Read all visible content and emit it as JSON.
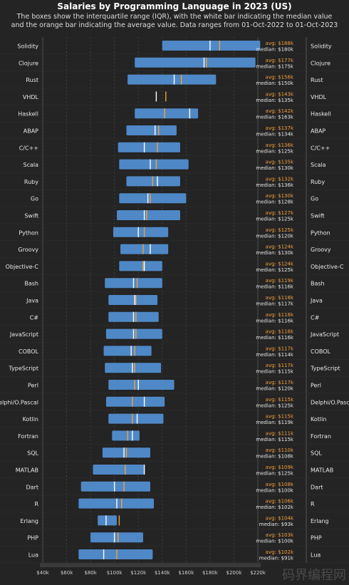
{
  "chart_data": {
    "type": "box",
    "title": "Salaries by Programming Language in 2023 (US)",
    "subtitle_lines": [
      "The boxes show the interquartile range (IQR), with the white bar indicating the median value",
      "and the orange bar indicating the average value. Data ranges from 01-Oct-2022 to 01-Oct-2023"
    ],
    "x_ticks": [
      "$40k",
      "$60k",
      "$80k",
      "$100k",
      "$120k",
      "$140k",
      "$160k",
      "$180k",
      "$200k",
      "$220k"
    ],
    "xlim": [
      40,
      220
    ],
    "unit": "k USD",
    "grid": true,
    "avg_label_prefix": "avg: ",
    "median_label_prefix": "median: ",
    "series": [
      {
        "name": "Solidity",
        "q1": 140,
        "q3": 222,
        "median": 180,
        "avg": 188,
        "avg_label": "$188k",
        "median_label": "$180k"
      },
      {
        "name": "Clojure",
        "q1": 117,
        "q3": 218,
        "median": 175,
        "avg": 177,
        "avg_label": "$177k",
        "median_label": "$175k"
      },
      {
        "name": "Rust",
        "q1": 111,
        "q3": 185,
        "median": 150,
        "avg": 156,
        "avg_label": "$156k",
        "median_label": "$150k"
      },
      {
        "name": "VHDL",
        "q1": null,
        "q3": null,
        "median": 135,
        "avg": 143,
        "avg_label": "$143k",
        "median_label": "$135k"
      },
      {
        "name": "Haskell",
        "q1": 117,
        "q3": 170,
        "median": 163,
        "avg": 142,
        "avg_label": "$142k",
        "median_label": "$163k"
      },
      {
        "name": "ABAP",
        "q1": 110,
        "q3": 152,
        "median": 134,
        "avg": 137,
        "avg_label": "$137k",
        "median_label": "$134k"
      },
      {
        "name": "C/C++",
        "q1": 103,
        "q3": 155,
        "median": 125,
        "avg": 136,
        "avg_label": "$136k",
        "median_label": "$125k"
      },
      {
        "name": "Scala",
        "q1": 104,
        "q3": 162,
        "median": 130,
        "avg": 135,
        "avg_label": "$135k",
        "median_label": "$130k"
      },
      {
        "name": "Ruby",
        "q1": 110,
        "q3": 155,
        "median": 136,
        "avg": 132,
        "avg_label": "$132k",
        "median_label": "$136k"
      },
      {
        "name": "Go",
        "q1": 104,
        "q3": 160,
        "median": 128,
        "avg": 130,
        "avg_label": "$130k",
        "median_label": "$128k"
      },
      {
        "name": "Swift",
        "q1": 102,
        "q3": 155,
        "median": 125,
        "avg": 127,
        "avg_label": "$127k",
        "median_label": "$125k"
      },
      {
        "name": "Python",
        "q1": 99,
        "q3": 145,
        "median": 120,
        "avg": 125,
        "avg_label": "$125k",
        "median_label": "$120k"
      },
      {
        "name": "Groovy",
        "q1": 105,
        "q3": 145,
        "median": 130,
        "avg": 124,
        "avg_label": "$124k",
        "median_label": "$130k"
      },
      {
        "name": "Objective-C",
        "q1": 104,
        "q3": 140,
        "median": 125,
        "avg": 124,
        "avg_label": "$124k",
        "median_label": "$125k"
      },
      {
        "name": "Bash",
        "q1": 92,
        "q3": 140,
        "median": 116,
        "avg": 119,
        "avg_label": "$119k",
        "median_label": "$116k"
      },
      {
        "name": "Java",
        "q1": 95,
        "q3": 136,
        "median": 117,
        "avg": 118,
        "avg_label": "$118k",
        "median_label": "$117k"
      },
      {
        "name": "C#",
        "q1": 95,
        "q3": 137,
        "median": 116,
        "avg": 118,
        "avg_label": "$118k",
        "median_label": "$116k"
      },
      {
        "name": "JavaScript",
        "q1": 93,
        "q3": 140,
        "median": 116,
        "avg": 118,
        "avg_label": "$118k",
        "median_label": "$116k"
      },
      {
        "name": "COBOL",
        "q1": 91,
        "q3": 131,
        "median": 114,
        "avg": 117,
        "avg_label": "$117k",
        "median_label": "$114k"
      },
      {
        "name": "TypeScript",
        "q1": 92,
        "q3": 139,
        "median": 115,
        "avg": 117,
        "avg_label": "$117k",
        "median_label": "$115k"
      },
      {
        "name": "Perl",
        "q1": 95,
        "q3": 150,
        "median": 120,
        "avg": 117,
        "avg_label": "$117k",
        "median_label": "$120k"
      },
      {
        "name": "Delphi/O.Pascal",
        "q1": 93,
        "q3": 142,
        "median": 125,
        "avg": 115,
        "avg_label": "$115k",
        "median_label": "$125k"
      },
      {
        "name": "Kotlin",
        "q1": 95,
        "q3": 141,
        "median": 119,
        "avg": 115,
        "avg_label": "$115k",
        "median_label": "$119k"
      },
      {
        "name": "Fortran",
        "q1": 98,
        "q3": 121,
        "median": 115,
        "avg": 111,
        "avg_label": "$111k",
        "median_label": "$115k"
      },
      {
        "name": "SQL",
        "q1": 90,
        "q3": 130,
        "median": 108,
        "avg": 110,
        "avg_label": "$110k",
        "median_label": "$108k"
      },
      {
        "name": "MATLAB",
        "q1": 82,
        "q3": 125,
        "median": 125,
        "avg": 109,
        "avg_label": "$109k",
        "median_label": "$125k"
      },
      {
        "name": "Dart",
        "q1": 72,
        "q3": 130,
        "median": 100,
        "avg": 108,
        "avg_label": "$108k",
        "median_label": "$100k"
      },
      {
        "name": "R",
        "q1": 70,
        "q3": 133,
        "median": 102,
        "avg": 106,
        "avg_label": "$106k",
        "median_label": "$102k"
      },
      {
        "name": "Erlang",
        "q1": 86,
        "q3": 102,
        "median": 93,
        "avg": 104,
        "avg_label": "$104k",
        "median_label": "$93k"
      },
      {
        "name": "PHP",
        "q1": 80,
        "q3": 124,
        "median": 100,
        "avg": 103,
        "avg_label": "$103k",
        "median_label": "$100k"
      },
      {
        "name": "Lua",
        "q1": 70,
        "q3": 132,
        "median": 91,
        "avg": 102,
        "avg_label": "$102k",
        "median_label": "$91k"
      }
    ],
    "colors": {
      "box": "#4f88c6",
      "median": "#ffffff",
      "avg": "#f0a040",
      "grid": "#444444",
      "text": "#e8e8e8",
      "background": "#242424"
    }
  },
  "watermark": "码界编程网"
}
